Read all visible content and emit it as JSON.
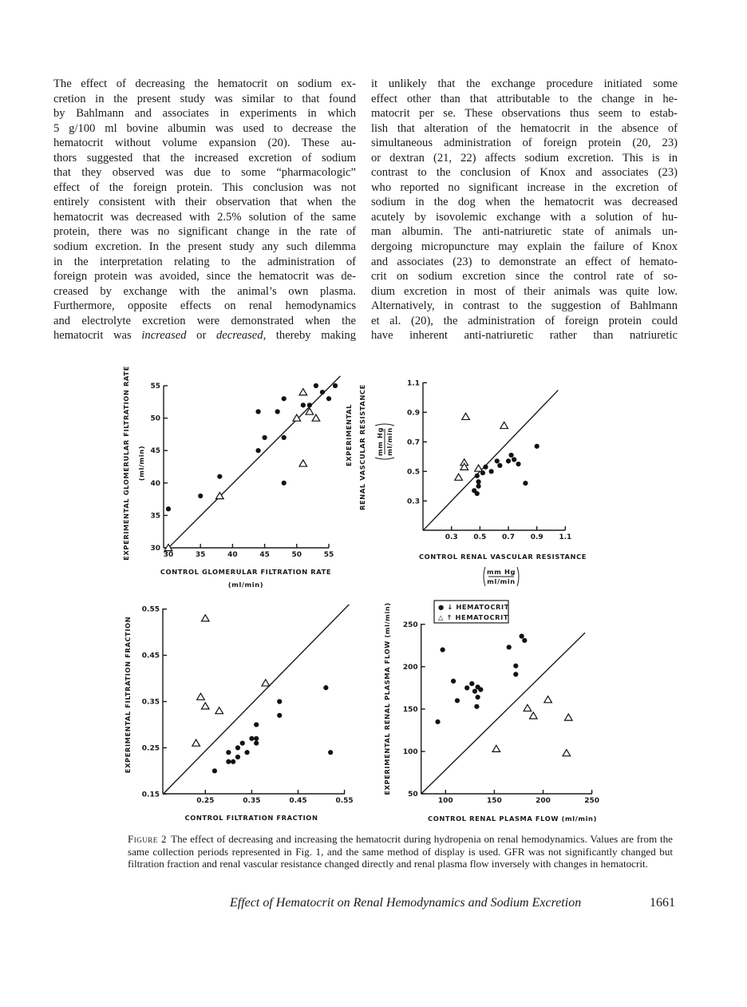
{
  "body_text": {
    "left_column": [
      "The effect of decreasing the hematocrit on sodium ex-",
      "cretion in the present study was similar to that found",
      "by Bahlmann and associates in experiments in which",
      "5 g/100 ml bovine albumin was used to decrease the",
      "hematocrit without volume expansion (20). These au-",
      "thors suggested that the increased excretion of sodium",
      "that they observed was due to some “pharmacologic”",
      "effect of the foreign protein. This conclusion was not",
      "entirely consistent with their observation that when the",
      "hematocrit was decreased with 2.5% solution of the same",
      "protein, there was no significant change in the rate of",
      "sodium excretion. In the present study any such dilemma",
      "in the interpretation relating to the administration of",
      "foreign protein was avoided, since the hematocrit was de-",
      "creased by exchange with the animal’s own plasma.",
      "Furthermore, opposite effects on renal hemodynamics",
      "and electrolyte excretion were demonstrated when the",
      [
        "hematocrit was ",
        "increased",
        " or ",
        "decreased",
        ", thereby making"
      ]
    ],
    "right_column": [
      "it unlikely that the exchange procedure initiated some",
      "effect other than that attributable to the change in he-",
      "matocrit per se. These observations thus seem to estab-",
      "lish that alteration of the hematocrit in the absence of",
      "simultaneous administration of foreign protein (20, 23)",
      "or dextran (21, 22) affects sodium excretion. This is in",
      "contrast to the conclusion of Knox and associates (23)",
      "who reported no significant increase in the excretion of",
      "sodium in the dog when the hematocrit was decreased",
      "acutely by isovolemic exchange with a solution of hu-",
      "man albumin. The anti-natriuretic state of animals un-",
      "dergoing micropuncture may explain the failure of Knox",
      "and associates (23) to demonstrate an effect of hemato-",
      "crit on sodium excretion since the control rate of so-",
      "dium excretion in most of their animals was quite low.",
      "Alternatively, in contrast to the suggestion of Bahlmann",
      "et al. (20), the administration of foreign protein could",
      "have inherent anti-natriuretic rather than natriuretic"
    ]
  },
  "legend": {
    "decreased": "● ↓ HEMATOCRIT",
    "increased": "△ ↑ HEMATOCRIT"
  },
  "chart_data": [
    {
      "type": "scatter",
      "xlabel": "CONTROL GLOMERULAR FILTRATION RATE",
      "xunit": "(ml/min)",
      "ylabel": "EXPERIMENTAL GLOMERULAR FILTRATION RATE",
      "yunit": "(ml/min)",
      "xlim": [
        30,
        55
      ],
      "ylim": [
        30,
        55
      ],
      "xticks": [
        "30",
        "35",
        "40",
        "45",
        "50",
        "55"
      ],
      "yticks": [
        "30",
        "35",
        "40",
        "45",
        "50",
        "55"
      ],
      "identity_line": true,
      "series": [
        {
          "marker": "filled-circle",
          "points": [
            [
              30,
              36
            ],
            [
              35,
              38
            ],
            [
              38,
              41
            ],
            [
              44,
              45
            ],
            [
              45,
              47
            ],
            [
              44,
              51
            ],
            [
              47,
              51
            ],
            [
              48,
              53
            ],
            [
              48,
              47
            ],
            [
              48,
              40
            ],
            [
              51,
              52
            ],
            [
              52,
              52
            ],
            [
              53,
              55
            ],
            [
              54,
              54
            ],
            [
              55,
              53
            ],
            [
              56,
              55
            ]
          ]
        },
        {
          "marker": "open-triangle",
          "points": [
            [
              30,
              30
            ],
            [
              38,
              38
            ],
            [
              50,
              50
            ],
            [
              51,
              54
            ],
            [
              52,
              51
            ],
            [
              53,
              50
            ],
            [
              51,
              43
            ]
          ]
        }
      ]
    },
    {
      "type": "scatter",
      "xlabel": "CONTROL RENAL VASCULAR RESISTANCE",
      "xunit_num": "mm Hg",
      "xunit_den": "ml/min",
      "ylabel_1": "EXPERIMENTAL",
      "ylabel_2": "RENAL VASCULAR RESISTANCE",
      "yunit_num": "mm Hg",
      "yunit_den": "ml/min",
      "xlim": [
        0.1,
        1.1
      ],
      "ylim": [
        0.1,
        1.1
      ],
      "xticks": [
        "0.3",
        "0.5",
        "0.7",
        "0.9",
        "1.1"
      ],
      "yticks": [
        "0.3",
        "0.5",
        "0.7",
        "0.9",
        "1.1"
      ],
      "identity_line": true,
      "series": [
        {
          "marker": "filled-circle",
          "points": [
            [
              0.48,
              0.47
            ],
            [
              0.49,
              0.43
            ],
            [
              0.49,
              0.4
            ],
            [
              0.46,
              0.37
            ],
            [
              0.48,
              0.35
            ],
            [
              0.52,
              0.49
            ],
            [
              0.54,
              0.53
            ],
            [
              0.58,
              0.5
            ],
            [
              0.62,
              0.57
            ],
            [
              0.64,
              0.54
            ],
            [
              0.7,
              0.57
            ],
            [
              0.72,
              0.61
            ],
            [
              0.74,
              0.58
            ],
            [
              0.77,
              0.55
            ],
            [
              0.82,
              0.42
            ],
            [
              0.9,
              0.67
            ]
          ]
        },
        {
          "marker": "open-triangle",
          "points": [
            [
              0.4,
              0.87
            ],
            [
              0.67,
              0.81
            ],
            [
              0.39,
              0.56
            ],
            [
              0.39,
              0.53
            ],
            [
              0.35,
              0.46
            ],
            [
              0.49,
              0.52
            ]
          ]
        }
      ]
    },
    {
      "type": "scatter",
      "xlabel": "CONTROL FILTRATION FRACTION",
      "ylabel": "EXPERIMENTAL FILTRATION FRACTION",
      "xlim": [
        0.15,
        0.55
      ],
      "ylim": [
        0.15,
        0.55
      ],
      "xticks": [
        "0.25",
        "0.35",
        "0.45",
        "0.55"
      ],
      "yticks": [
        "0.15",
        "0.25",
        "0.35",
        "0.45",
        "0.55"
      ],
      "identity_line": true,
      "series": [
        {
          "marker": "filled-circle",
          "points": [
            [
              0.27,
              0.2
            ],
            [
              0.3,
              0.22
            ],
            [
              0.3,
              0.24
            ],
            [
              0.31,
              0.22
            ],
            [
              0.32,
              0.25
            ],
            [
              0.32,
              0.23
            ],
            [
              0.33,
              0.26
            ],
            [
              0.34,
              0.24
            ],
            [
              0.35,
              0.27
            ],
            [
              0.36,
              0.27
            ],
            [
              0.36,
              0.3
            ],
            [
              0.36,
              0.26
            ],
            [
              0.41,
              0.35
            ],
            [
              0.41,
              0.32
            ],
            [
              0.51,
              0.38
            ],
            [
              0.52,
              0.24
            ]
          ]
        },
        {
          "marker": "open-triangle",
          "points": [
            [
              0.25,
              0.53
            ],
            [
              0.23,
              0.26
            ],
            [
              0.24,
              0.36
            ],
            [
              0.25,
              0.34
            ],
            [
              0.28,
              0.33
            ],
            [
              0.38,
              0.39
            ]
          ]
        }
      ]
    },
    {
      "type": "scatter",
      "xlabel": "CONTROL RENAL PLASMA FLOW (ml/min)",
      "ylabel": "EXPERIMENTAL RENAL PLASMA FLOW (ml/min)",
      "xlim": [
        75,
        250
      ],
      "ylim": [
        50,
        250
      ],
      "xticks": [
        "100",
        "150",
        "200",
        "250"
      ],
      "yticks": [
        "50",
        "100",
        "150",
        "200",
        "250"
      ],
      "identity_line": true,
      "legend_position": "top-left",
      "series": [
        {
          "name": "↓ HEMATOCRIT",
          "marker": "filled-circle",
          "points": [
            [
              92,
              135
            ],
            [
              97,
              220
            ],
            [
              108,
              183
            ],
            [
              112,
              160
            ],
            [
              122,
              175
            ],
            [
              127,
              180
            ],
            [
              130,
              171
            ],
            [
              133,
              176
            ],
            [
              136,
              173
            ],
            [
              133,
              164
            ],
            [
              132,
              153
            ],
            [
              165,
              223
            ],
            [
              172,
              201
            ],
            [
              172,
              191
            ],
            [
              178,
              236
            ],
            [
              181,
              231
            ]
          ]
        },
        {
          "name": "↑ HEMATOCRIT",
          "marker": "open-triangle",
          "points": [
            [
              152,
              103
            ],
            [
              184,
              151
            ],
            [
              190,
              142
            ],
            [
              205,
              161
            ],
            [
              226,
              140
            ],
            [
              224,
              98
            ]
          ]
        }
      ]
    }
  ],
  "caption": {
    "label": "Figure 2",
    "text": "The effect of decreasing and increasing the hematocrit during hydropenia on renal hemodynamics. Values are from the same collection periods represented in Fig. 1, and the same method of display is used. GFR was not significantly changed but filtration fraction and renal vascular resistance changed directly and renal plasma flow inversely with changes in hematocrit."
  },
  "footer": {
    "running_title": "Effect of Hematocrit on Renal Hemodynamics and Sodium Excretion",
    "page_number": "1661"
  }
}
